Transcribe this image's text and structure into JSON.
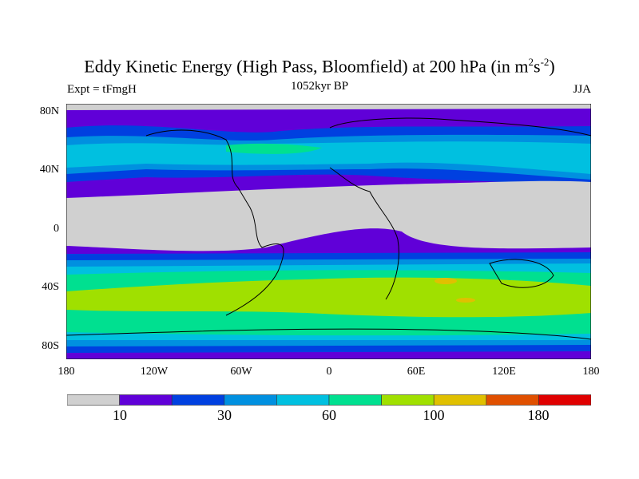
{
  "title": "Eddy Kinetic Energy (High Pass, Bloomfield) at 200 hPa (in m",
  "title_sup1": "2",
  "title_mid": "s",
  "title_sup2": "-2",
  "title_end": ")",
  "subtitle_left": "Expt = tFmgH",
  "subtitle_center": "1052kyr BP",
  "subtitle_right": "JJA",
  "lat_labels": [
    "80N",
    "40N",
    "0",
    "40S",
    "80S"
  ],
  "lon_labels": [
    "180",
    "120W",
    "60W",
    "0",
    "60E",
    "120E",
    "180"
  ],
  "colorbar": {
    "colors": [
      "#d0d0d0",
      "#6000d8",
      "#0040e0",
      "#0090e0",
      "#00c0e0",
      "#00e090",
      "#a0e000",
      "#e0c000",
      "#e05000",
      "#e00000"
    ],
    "labels": [
      "10",
      "30",
      "60",
      "100",
      "180"
    ]
  }
}
